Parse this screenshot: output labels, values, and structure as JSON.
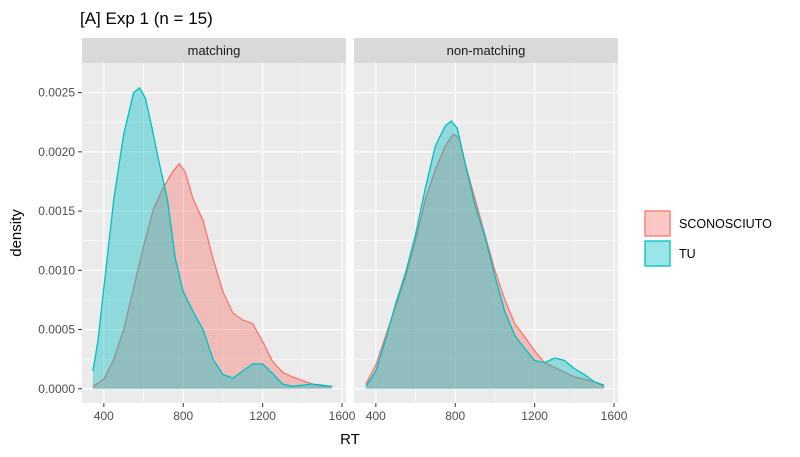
{
  "chart_data": {
    "type": "area",
    "subtype": "density",
    "title": "[A] Exp 1 (n = 15)",
    "xlabel": "RT",
    "ylabel": "density",
    "xlim": [
      290,
      1620
    ],
    "ylim": [
      -0.00012,
      0.00275
    ],
    "x_ticks": [
      400,
      800,
      1200,
      1600
    ],
    "x_tick_labels": [
      "400",
      "800",
      "1200",
      "1600"
    ],
    "y_ticks": [
      0,
      0.0005,
      0.001,
      0.0015,
      0.002,
      0.0025
    ],
    "y_tick_labels": [
      "0.0000",
      "0.0005",
      "0.0010",
      "0.0015",
      "0.0020",
      "0.0025"
    ],
    "grid": true,
    "legend_position": "right",
    "colors": {
      "SCONOSCIUTO": "#F8766D",
      "TU": "#00BFC4",
      "panel_bg": "#EBEBEB",
      "strip_bg": "#D9D9D9",
      "grid": "#FFFFFF"
    },
    "panels": [
      {
        "strip_label": "matching",
        "series": [
          {
            "name": "SCONOSCIUTO",
            "x": [
              345,
              400,
              450,
              500,
              550,
              600,
              650,
              700,
              750,
              780,
              810,
              850,
              900,
              950,
              1000,
              1050,
              1100,
              1150,
              1200,
              1250,
              1300,
              1350,
              1400,
              1450,
              1500,
              1550
            ],
            "y": [
              2e-05,
              8e-05,
              0.00025,
              0.0005,
              0.00085,
              0.0012,
              0.00152,
              0.0017,
              0.00184,
              0.0019,
              0.00183,
              0.0016,
              0.00142,
              0.0011,
              0.00082,
              0.00064,
              0.00058,
              0.00055,
              0.0004,
              0.00023,
              0.00014,
              0.0001,
              7e-05,
              4e-05,
              2e-05,
              2e-05
            ]
          },
          {
            "name": "TU",
            "x": [
              345,
              370,
              400,
              450,
              500,
              550,
              580,
              610,
              640,
              680,
              720,
              760,
              800,
              850,
              900,
              950,
              1000,
              1050,
              1100,
              1150,
              1200,
              1250,
              1300,
              1350,
              1400,
              1450,
              1500,
              1550
            ],
            "y": [
              0.00015,
              0.0004,
              0.00085,
              0.0016,
              0.00215,
              0.0025,
              0.00254,
              0.00245,
              0.00222,
              0.0019,
              0.0016,
              0.0011,
              0.00082,
              0.00065,
              0.0005,
              0.00025,
              0.00012,
              9e-05,
              0.00015,
              0.00021,
              0.00021,
              0.00013,
              4e-05,
              2e-05,
              3e-05,
              4e-05,
              3e-05,
              2e-05
            ]
          }
        ]
      },
      {
        "strip_label": "non-matching",
        "series": [
          {
            "name": "SCONOSCIUTO",
            "x": [
              350,
              400,
              450,
              500,
              550,
              600,
              650,
              700,
              750,
              790,
              820,
              850,
              900,
              950,
              1000,
              1050,
              1100,
              1150,
              1200,
              1250,
              1300,
              1350,
              1400,
              1450,
              1500,
              1550
            ],
            "y": [
              4e-05,
              0.0002,
              0.00045,
              0.0007,
              0.00095,
              0.00125,
              0.0016,
              0.00185,
              0.00205,
              0.00215,
              0.00212,
              0.0019,
              0.0016,
              0.0013,
              0.001,
              0.00075,
              0.00055,
              0.00044,
              0.00032,
              0.00022,
              0.00018,
              0.00014,
              0.0001,
              8e-05,
              6e-05,
              2e-05
            ]
          },
          {
            "name": "TU",
            "x": [
              350,
              400,
              450,
              500,
              550,
              600,
              650,
              700,
              750,
              780,
              810,
              850,
              900,
              950,
              1000,
              1050,
              1100,
              1150,
              1200,
              1250,
              1300,
              1350,
              1400,
              1450,
              1500,
              1550
            ],
            "y": [
              2e-05,
              0.00015,
              0.00042,
              0.00072,
              0.00098,
              0.0013,
              0.0017,
              0.00205,
              0.00222,
              0.00226,
              0.0022,
              0.0019,
              0.00155,
              0.00128,
              0.00095,
              0.00065,
              0.00045,
              0.00034,
              0.00024,
              0.00022,
              0.00026,
              0.00024,
              0.00017,
              0.00012,
              6e-05,
              3e-05
            ]
          }
        ]
      }
    ]
  }
}
